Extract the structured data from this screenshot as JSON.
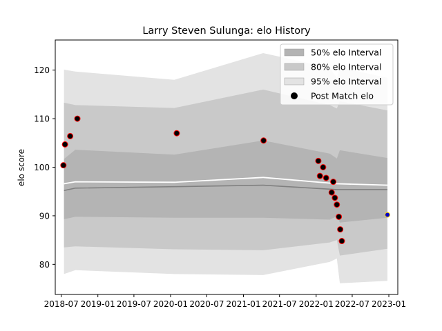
{
  "chart_data": {
    "type": "line",
    "title": "Larry Steven Sulunga: elo History",
    "xlabel": "",
    "ylabel": "elo score",
    "xlim": [
      "2018-06-01",
      "2023-02-15"
    ],
    "ylim": [
      73.8,
      126.2
    ],
    "grid": false,
    "legend_position": "top-right",
    "x_ticks": [
      "2018-07-01",
      "2019-01-01",
      "2019-07-01",
      "2020-01-01",
      "2020-07-01",
      "2021-01-01",
      "2021-07-01",
      "2022-01-01",
      "2022-07-01",
      "2023-01-01"
    ],
    "x_tick_labels": [
      "2018-07",
      "2019-01",
      "2019-07",
      "2020-01",
      "2020-07",
      "2021-01",
      "2021-07",
      "2022-01",
      "2022-07",
      "2023-01"
    ],
    "y_ticks": [
      80,
      90,
      100,
      110,
      120
    ],
    "y_tick_labels": [
      "80",
      "90",
      "100",
      "110",
      "120"
    ],
    "legend": [
      {
        "label": "50% elo Interval",
        "kind": "patch",
        "color": "#b4b4b4"
      },
      {
        "label": "80% elo Interval",
        "kind": "patch",
        "color": "#c9c9c9"
      },
      {
        "label": "95% elo Interval",
        "kind": "patch",
        "color": "#e3e3e3"
      },
      {
        "label": "Post Match elo",
        "kind": "marker",
        "color": "#000000"
      }
    ],
    "bands": {
      "x": [
        "2018-07-15",
        "2018-09-10",
        "2020-01-20",
        "2021-04-10",
        "2022-03-10",
        "2022-04-15",
        "2022-04-30",
        "2022-12-25"
      ],
      "interval_95_low": [
        78.0,
        78.8,
        78.0,
        77.8,
        80.5,
        81.2,
        76.1,
        76.6
      ],
      "interval_95_high": [
        120.1,
        119.7,
        118.0,
        123.5,
        120.5,
        118.4,
        120.6,
        118.4
      ],
      "interval_80_low": [
        83.5,
        83.7,
        83.1,
        82.9,
        84.5,
        85.0,
        81.8,
        83.2
      ],
      "interval_80_high": [
        113.3,
        112.8,
        112.2,
        116.0,
        112.8,
        112.1,
        113.6,
        111.7
      ],
      "interval_50_low": [
        89.3,
        89.8,
        89.6,
        89.6,
        89.2,
        89.9,
        88.6,
        89.6
      ],
      "interval_50_high": [
        101.7,
        103.6,
        102.6,
        105.5,
        102.8,
        101.8,
        103.5,
        101.9
      ]
    },
    "series": [
      {
        "kind": "mean",
        "color": "#ffffff",
        "x": [
          "2018-07-15",
          "2018-09-10",
          "2020-01-20",
          "2021-04-10",
          "2022-04-15",
          "2022-12-25"
        ],
        "values": [
          96.6,
          97.0,
          96.9,
          97.9,
          96.6,
          96.3
        ]
      },
      {
        "kind": "median",
        "color": "#808080",
        "x": [
          "2018-07-15",
          "2018-09-10",
          "2020-01-20",
          "2021-04-10",
          "2022-04-15",
          "2022-12-25"
        ],
        "values": [
          95.2,
          95.7,
          96.0,
          96.3,
          95.4,
          95.4
        ]
      },
      {
        "name": "Post Match elo",
        "kind": "points",
        "color": "#000000",
        "edge_color": "#ff0000",
        "x": [
          "2018-07-12",
          "2018-07-20",
          "2018-08-15",
          "2018-09-20",
          "2020-02-01",
          "2021-04-12",
          "2022-01-12",
          "2022-01-20",
          "2022-02-05",
          "2022-02-20",
          "2022-03-20",
          "2022-03-28",
          "2022-04-05",
          "2022-04-15",
          "2022-04-25",
          "2022-05-02",
          "2022-05-10"
        ],
        "values": [
          100.4,
          104.7,
          106.4,
          110.0,
          107.0,
          105.5,
          101.3,
          98.2,
          100.0,
          97.8,
          94.8,
          97.0,
          93.7,
          92.3,
          89.8,
          87.2,
          84.8
        ]
      },
      {
        "kind": "current",
        "color": "#0000cc",
        "edge_color": "#ffd700",
        "x": [
          "2022-12-25"
        ],
        "values": [
          90.2
        ]
      }
    ]
  }
}
